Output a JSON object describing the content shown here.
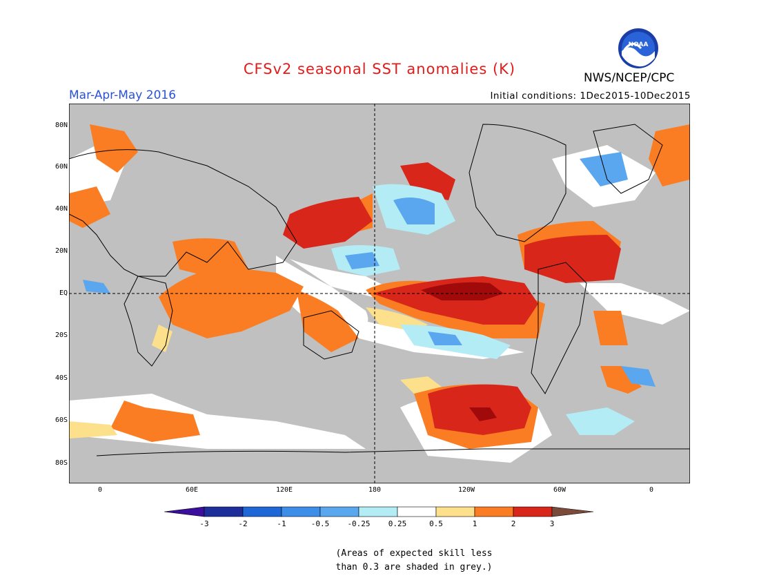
{
  "header": {
    "title": "CFSv2 seasonal SST anomalies (K)",
    "season": "Mar-Apr-May 2016",
    "init": "Initial conditions: 1Dec2015-10Dec2015",
    "agency": "NWS/NCEP/CPC",
    "logo_text": "NOAA"
  },
  "colors": {
    "title": "#e21b1b",
    "season": "#2a52d6",
    "grey": "#c0c0c0",
    "neg3": "#1d2d9a",
    "neg2": "#1f66d6",
    "neg1": "#3c8ee8",
    "neg05": "#5aa7ef",
    "neg025": "#b4ecf6",
    "white": "#ffffff",
    "pos025": "#fde08b",
    "pos05": "#fb7d23",
    "pos1": "#ea4a12",
    "pos2": "#d8261a",
    "pos3": "#a10a0a",
    "brown": "#7a4a3a",
    "purple": "#3b0f9e"
  },
  "map": {
    "lat_labels": [
      "80N",
      "60N",
      "40N",
      "20N",
      "EQ",
      "20S",
      "40S",
      "60S",
      "80S"
    ],
    "lon_labels": [
      "0",
      "60E",
      "120E",
      "180",
      "120W",
      "60W",
      "0"
    ]
  },
  "colorbar": {
    "labels": [
      "-3",
      "-2",
      "-1",
      "-0.5",
      "-0.25",
      "0.25",
      "0.5",
      "1",
      "2",
      "3"
    ]
  },
  "note": {
    "line1": "(Areas of expected skill less",
    "line2": "than 0.3 are shaded in grey.)"
  }
}
